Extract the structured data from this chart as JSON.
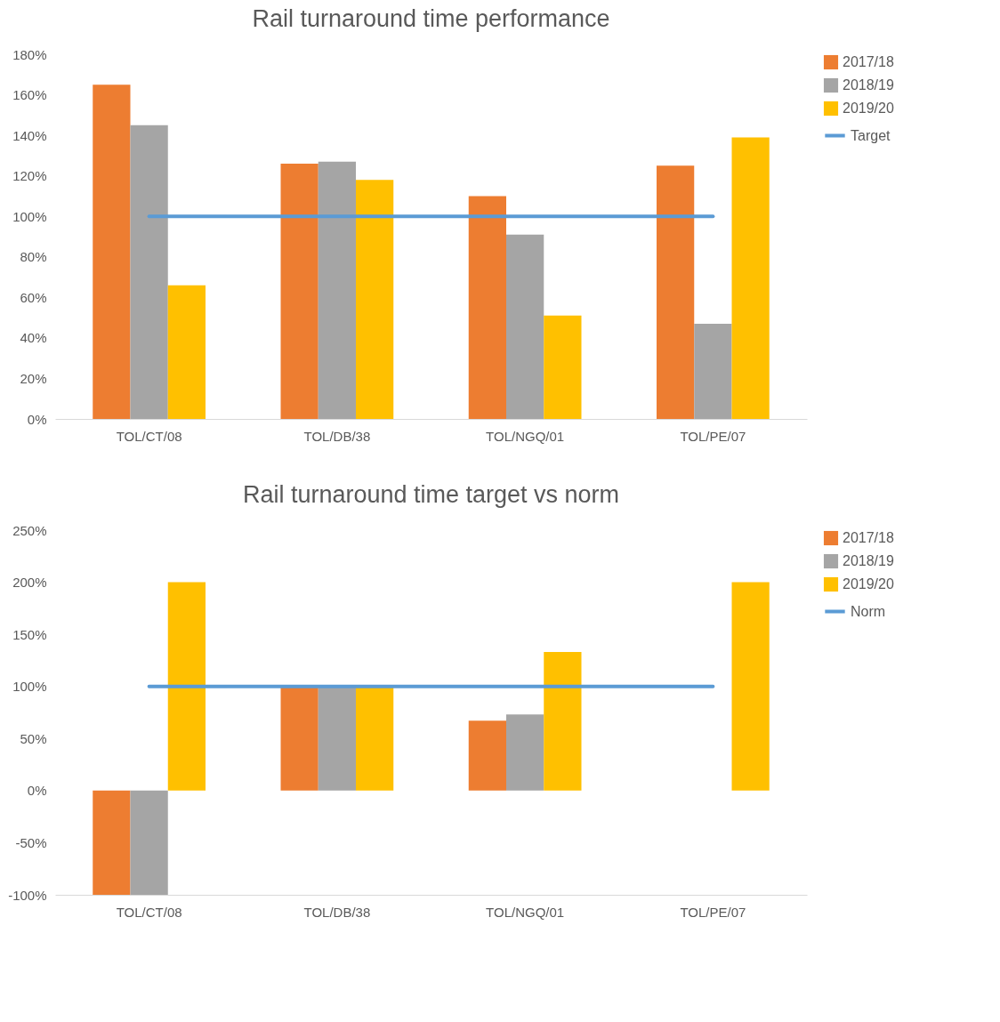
{
  "chart_data": [
    {
      "type": "bar",
      "title": "Rail turnaround time performance",
      "categories": [
        "TOL/CT/08",
        "TOL/DB/38",
        "TOL/NGQ/01",
        "TOL/PE/07"
      ],
      "series": [
        {
          "name": "2017/18",
          "color": "#ed7d31",
          "values": [
            165,
            126,
            110,
            125
          ]
        },
        {
          "name": "2018/19",
          "color": "#a5a5a5",
          "values": [
            145,
            127,
            91,
            47
          ]
        },
        {
          "name": "2019/20",
          "color": "#ffc000",
          "values": [
            66,
            118,
            51,
            139
          ]
        },
        {
          "name": "Target",
          "type": "line",
          "color": "#5b9bd5",
          "values": [
            100,
            100,
            100,
            100
          ]
        }
      ],
      "ylim": [
        0,
        180
      ],
      "yticks": [
        {
          "value": 0,
          "label": "0%"
        },
        {
          "value": 20,
          "label": "20%"
        },
        {
          "value": 40,
          "label": "40%"
        },
        {
          "value": 60,
          "label": "60%"
        },
        {
          "value": 80,
          "label": "80%"
        },
        {
          "value": 100,
          "label": "100%"
        },
        {
          "value": 120,
          "label": "120%"
        },
        {
          "value": 140,
          "label": "140%"
        },
        {
          "value": 160,
          "label": "160%"
        },
        {
          "value": 180,
          "label": "180%"
        }
      ],
      "grid": false,
      "legend": "right"
    },
    {
      "type": "bar",
      "title": "Rail turnaround time target vs norm",
      "categories": [
        "TOL/CT/08",
        "TOL/DB/38",
        "TOL/NGQ/01",
        "TOL/PE/07"
      ],
      "series": [
        {
          "name": "2017/18",
          "color": "#ed7d31",
          "values": [
            -100,
            100,
            67,
            0
          ]
        },
        {
          "name": "2018/19",
          "color": "#a5a5a5",
          "values": [
            -100,
            100,
            73,
            0
          ]
        },
        {
          "name": "2019/20",
          "color": "#ffc000",
          "values": [
            200,
            100,
            133,
            200
          ]
        },
        {
          "name": "Norm",
          "type": "line",
          "color": "#5b9bd5",
          "values": [
            100,
            100,
            100,
            100
          ]
        }
      ],
      "ylim": [
        -100,
        250
      ],
      "yticks": [
        {
          "value": -100,
          "label": "-100%"
        },
        {
          "value": -50,
          "label": "-50%"
        },
        {
          "value": 0,
          "label": "0%"
        },
        {
          "value": 50,
          "label": "50%"
        },
        {
          "value": 100,
          "label": "100%"
        },
        {
          "value": 150,
          "label": "150%"
        },
        {
          "value": 200,
          "label": "200%"
        },
        {
          "value": 250,
          "label": "250%"
        }
      ],
      "grid": false,
      "legend": "right"
    }
  ]
}
